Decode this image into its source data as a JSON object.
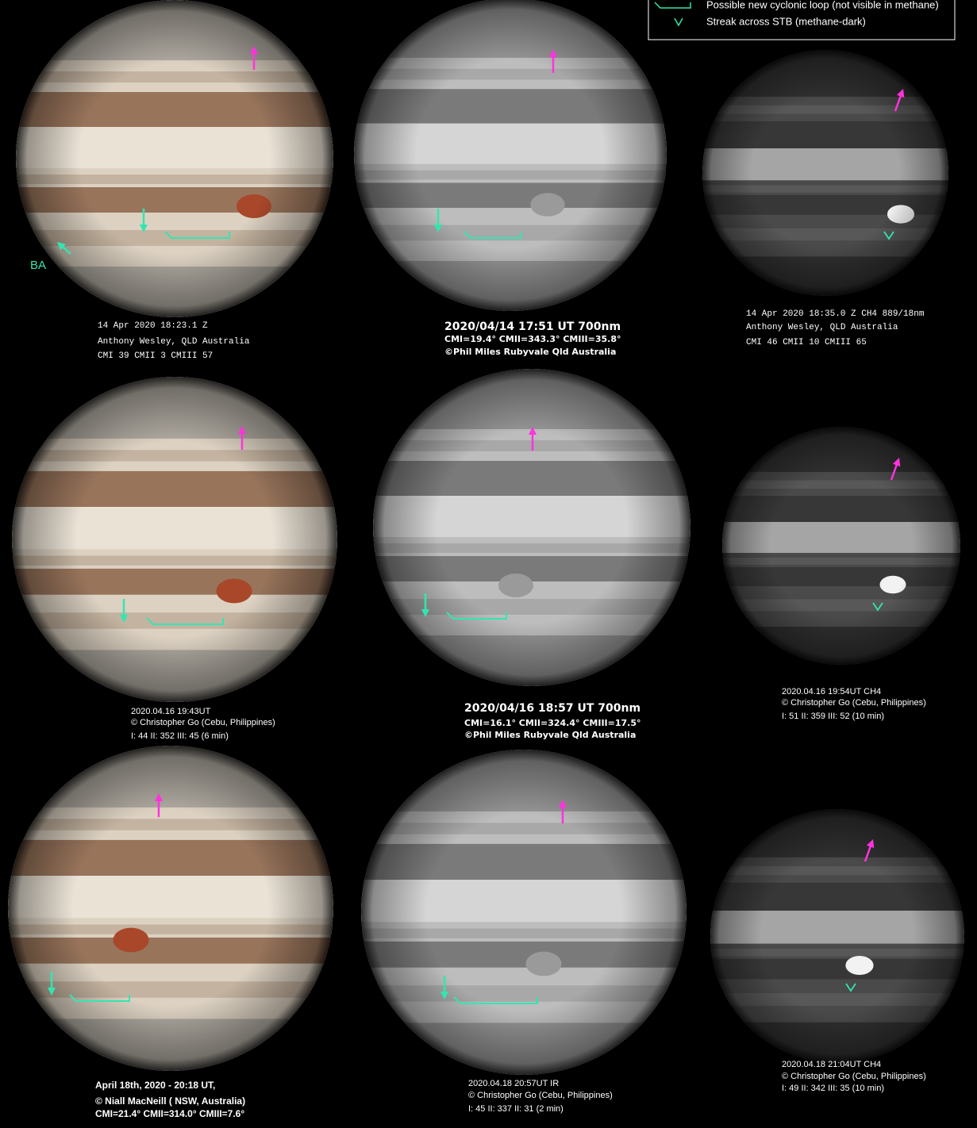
{
  "legend": {
    "items": [
      {
        "label": "Possible new cyclonic loop (not visible in methane)"
      },
      {
        "label": "Streak across STB (methane-dark)"
      }
    ]
  },
  "panels": [
    {
      "lines": [
        "14 Apr 2020 18:23.1 Z",
        "Anthony Wesley, QLD Australia",
        "CMI 39   CMII 3   CMIII 57"
      ],
      "label": "BA"
    },
    {
      "lines": [
        "2020/04/14  17:51 UT    700nm",
        "CMI=19.4° CMII=343.3° CMIII=35.8°",
        "©Phil Miles Rubyvale Qld Australia"
      ]
    },
    {
      "lines": [
        "14 Apr 2020 18:35.0 Z  CH4 889/18nm",
        "Anthony Wesley, QLD Australia",
        "CMI 46   CMII 10   CMIII 65"
      ]
    },
    {
      "lines": [
        "2020.04.16   19:43UT",
        "© Christopher Go  (Cebu, Philippines)",
        "I: 44  II: 352  III: 45  (6 min)"
      ]
    },
    {
      "lines": [
        "2020/04/16  18:57 UT    700nm",
        "CMI=16.1° CMII=324.4° CMIII=17.5°",
        "©Phil Miles Rubyvale Qld Australia"
      ]
    },
    {
      "lines": [
        "2020.04.16   19:54UT  CH4",
        "© Christopher Go  (Cebu, Philippines)",
        "I: 51  II: 359  III: 52  (10 min)"
      ]
    },
    {
      "lines": [
        "April 18th, 2020 - 20:18 UT,",
        "© Niall MacNeill ( NSW, Australia)",
        "CMI=21.4° CMII=314.0° CMIII=7.6°"
      ]
    },
    {
      "lines": [
        "2020.04.18    20:57UT  IR",
        "© Christopher Go  (Cebu, Philippines)",
        "I: 45  II: 337  II: 31 (2 min)"
      ]
    },
    {
      "lines": [
        "2020.04.18    21:04UT  CH4",
        "© Christopher Go  (Cebu, Philippines)",
        "I: 49  II: 342  III: 35  (10 min)"
      ]
    }
  ]
}
